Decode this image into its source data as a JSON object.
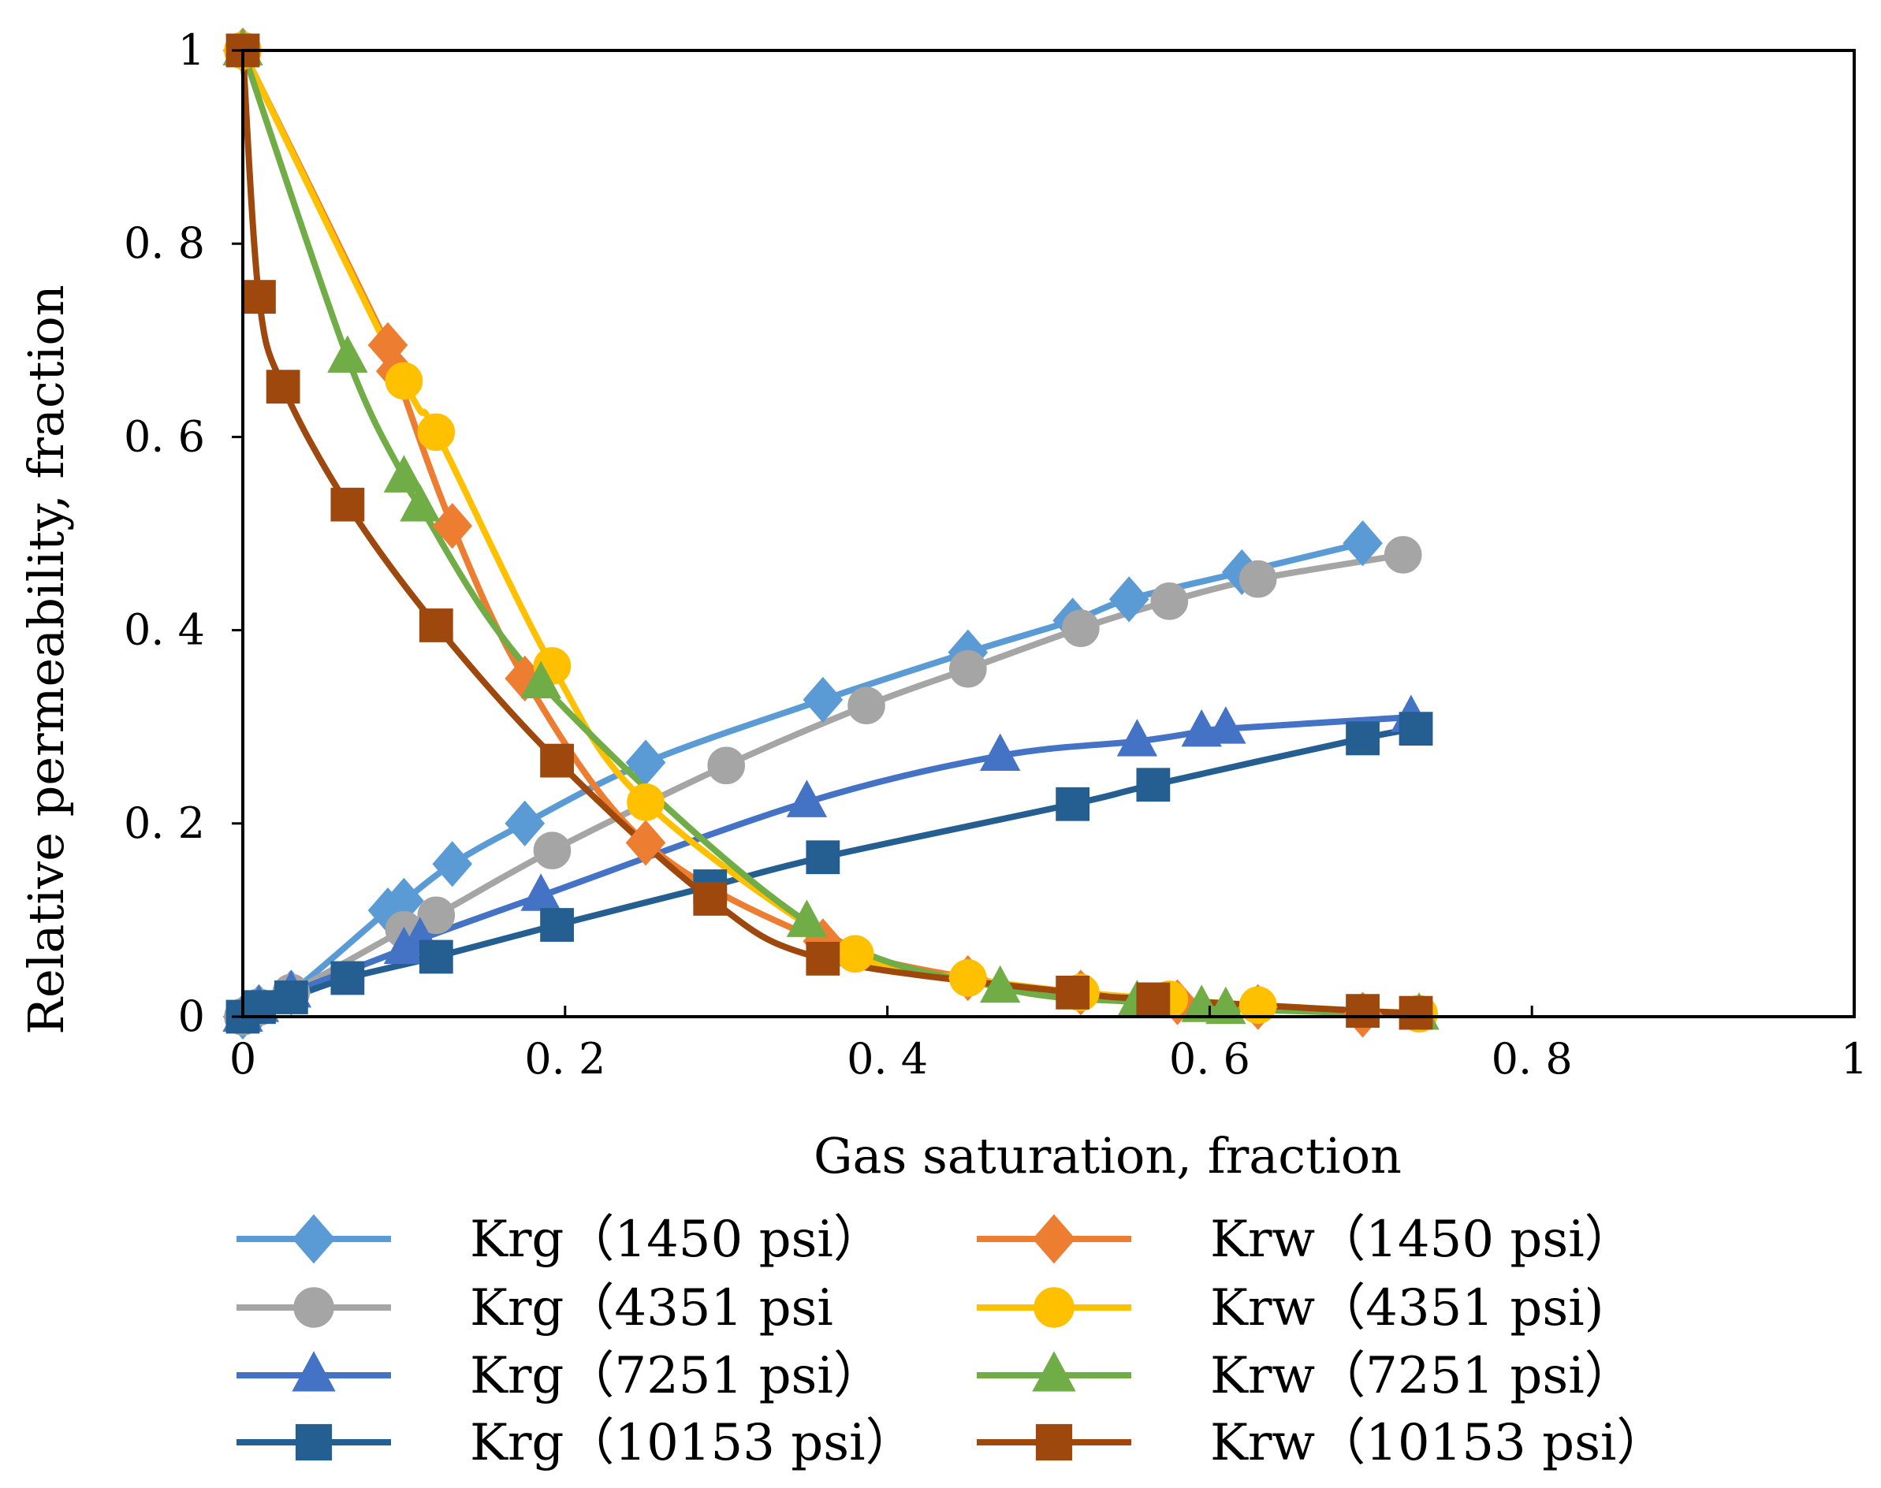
{
  "chart_data": {
    "type": "line",
    "title": "",
    "xlabel": "Gas saturation, fraction",
    "ylabel": "Relative  permeability, fraction",
    "xlim": [
      0,
      1
    ],
    "ylim": [
      0,
      1
    ],
    "x_ticks": [
      0,
      0.2,
      0.4,
      0.6,
      0.8,
      1
    ],
    "x_tick_labels": [
      "0",
      "0. 2",
      "0. 4",
      "0. 6",
      "0. 8",
      "1"
    ],
    "y_ticks": [
      0,
      0.2,
      0.4,
      0.6,
      0.8,
      1
    ],
    "y_tick_labels": [
      "0",
      "0. 2",
      "0. 4",
      "0. 6",
      "0. 8",
      "1"
    ],
    "grid": false,
    "legend_position": "bottom",
    "series": [
      {
        "name": "Krg（1450 psi）",
        "color": "#5B9BD5",
        "marker": "diamond",
        "x": [
          0,
          0.01,
          0.03,
          0.09,
          0.1,
          0.13,
          0.175,
          0.25,
          0.36,
          0.45,
          0.515,
          0.55,
          0.62,
          0.695
        ],
        "y": [
          0,
          0.01,
          0.025,
          0.11,
          0.12,
          0.158,
          0.2,
          0.263,
          0.328,
          0.377,
          0.41,
          0.432,
          0.46,
          0.49
        ]
      },
      {
        "name": "Krg（4351 psi",
        "color": "#A5A5A5",
        "marker": "circle",
        "x": [
          0,
          0.01,
          0.03,
          0.1,
          0.12,
          0.192,
          0.3,
          0.387,
          0.45,
          0.52,
          0.575,
          0.63,
          0.72
        ],
        "y": [
          0,
          0.01,
          0.025,
          0.09,
          0.105,
          0.172,
          0.26,
          0.322,
          0.36,
          0.402,
          0.43,
          0.453,
          0.478
        ]
      },
      {
        "name": "Krg（7251 psi）",
        "color": "#4472C4",
        "marker": "triangle",
        "x": [
          0,
          0.01,
          0.03,
          0.1,
          0.11,
          0.185,
          0.35,
          0.47,
          0.555,
          0.595,
          0.61,
          0.725
        ],
        "y": [
          0,
          0.01,
          0.025,
          0.07,
          0.08,
          0.125,
          0.222,
          0.27,
          0.285,
          0.295,
          0.298,
          0.31
        ]
      },
      {
        "name": "Krg（10153 psi）",
        "color": "#255E91",
        "marker": "square",
        "x": [
          0,
          0.01,
          0.03,
          0.065,
          0.12,
          0.195,
          0.29,
          0.36,
          0.515,
          0.565,
          0.695,
          0.728
        ],
        "y": [
          0,
          0.01,
          0.02,
          0.04,
          0.062,
          0.095,
          0.135,
          0.165,
          0.22,
          0.24,
          0.288,
          0.298
        ]
      },
      {
        "name": "Krw（1450 psi）",
        "color": "#ED7D31",
        "marker": "diamond",
        "x": [
          0,
          0.09,
          0.095,
          0.13,
          0.175,
          0.25,
          0.36,
          0.45,
          0.52,
          0.58,
          0.63,
          0.695
        ],
        "y": [
          1,
          0.695,
          0.668,
          0.508,
          0.35,
          0.18,
          0.078,
          0.04,
          0.025,
          0.015,
          0.01,
          0.002
        ]
      },
      {
        "name": "Krw（4351 psi)",
        "color": "#FFC000",
        "marker": "circle",
        "x": [
          0,
          0.1,
          0.12,
          0.192,
          0.25,
          0.38,
          0.45,
          0.52,
          0.575,
          0.63,
          0.73
        ],
        "y": [
          1,
          0.658,
          0.605,
          0.363,
          0.222,
          0.065,
          0.04,
          0.025,
          0.018,
          0.012,
          0.003
        ]
      },
      {
        "name": "Krw（7251 psi）",
        "color": "#70AD47",
        "marker": "triangle",
        "x": [
          0,
          0.065,
          0.1,
          0.11,
          0.185,
          0.35,
          0.47,
          0.555,
          0.595,
          0.61,
          0.73
        ],
        "y": [
          1,
          0.682,
          0.558,
          0.528,
          0.345,
          0.098,
          0.03,
          0.015,
          0.01,
          0.008,
          0.002
        ]
      },
      {
        "name": "Krw（10153 psi）",
        "color": "#9E480E",
        "marker": "square",
        "x": [
          0,
          0.01,
          0.025,
          0.065,
          0.12,
          0.195,
          0.29,
          0.36,
          0.515,
          0.565,
          0.695,
          0.728
        ],
        "y": [
          1,
          0.745,
          0.652,
          0.53,
          0.405,
          0.265,
          0.122,
          0.06,
          0.025,
          0.018,
          0.006,
          0.004
        ]
      }
    ]
  }
}
